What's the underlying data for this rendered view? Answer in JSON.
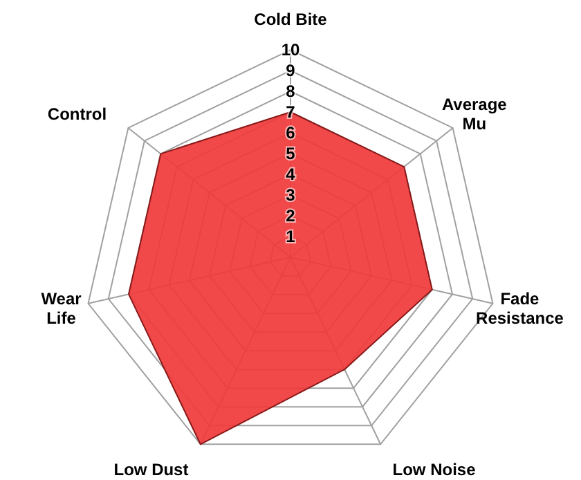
{
  "chart_data": {
    "type": "radar",
    "categories": [
      "Cold Bite",
      "Average\nMu",
      "Fade\nResistance",
      "Low Noise",
      "Low Dust",
      "Wear\nLife",
      "Control"
    ],
    "series": [
      {
        "color": "#f03a3a",
        "values": [
          7,
          7,
          7,
          6,
          10,
          8,
          8
        ]
      }
    ],
    "ylim": [
      0,
      10
    ],
    "yticks": [
      1,
      2,
      3,
      4,
      5,
      6,
      7,
      8,
      9,
      10
    ],
    "grid": true
  }
}
